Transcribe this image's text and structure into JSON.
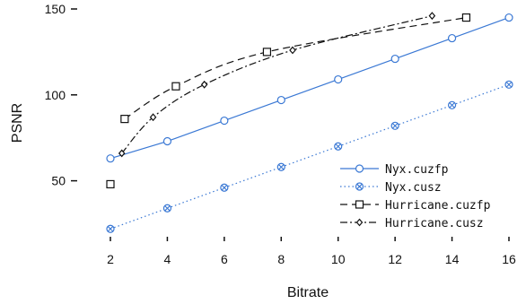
{
  "chart_data": {
    "type": "line",
    "title": "",
    "xlabel": "Bitrate",
    "ylabel": "PSNR",
    "xlim": [
      2,
      16
    ],
    "ylim": [
      25,
      150
    ],
    "x_ticks": [
      2,
      4,
      6,
      8,
      10,
      12,
      14,
      16
    ],
    "y_ticks": [
      50,
      100,
      150
    ],
    "grid": false,
    "legend_position": "bottom-right",
    "series": [
      {
        "name": "Nyx.cuzfp",
        "color": "#3a78d4",
        "line": "solid",
        "marker": "circle",
        "x": [
          2,
          4,
          6,
          8,
          10,
          12,
          14,
          16
        ],
        "y": [
          63,
          73,
          85,
          97,
          109,
          121,
          133,
          145
        ]
      },
      {
        "name": "Nyx.cusz",
        "color": "#3a78d4",
        "line": "dotted",
        "marker": "circle-x",
        "x": [
          2,
          4,
          6,
          8,
          10,
          12,
          14,
          16
        ],
        "y": [
          22,
          34,
          46,
          58,
          70,
          82,
          94,
          106
        ]
      },
      {
        "name": "Hurricane.cuzfp",
        "color": "#111111",
        "line": "dashed",
        "marker": "square",
        "x": [
          2,
          2.5,
          4.3,
          7.5,
          14.5
        ],
        "y": [
          48,
          86,
          105,
          125,
          145
        ]
      },
      {
        "name": "Hurricane.cusz",
        "color": "#111111",
        "line": "dashdot",
        "marker": "diamond",
        "x": [
          2.4,
          3.5,
          5.3,
          8.4,
          13.3
        ],
        "y": [
          66,
          87,
          106,
          126,
          146
        ]
      }
    ]
  }
}
